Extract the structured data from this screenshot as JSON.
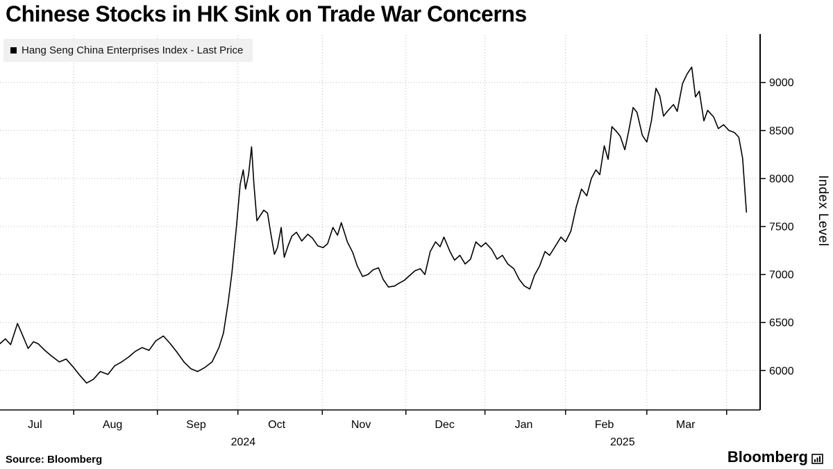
{
  "title": "Chinese Stocks in HK Sink on Trade War Concerns",
  "legend": {
    "series_label": "Hang Seng China Enterprises Index - Last Price"
  },
  "source": "Source: Bloomberg",
  "branding": {
    "logo_text": "Bloomberg"
  },
  "colors": {
    "line": "#000000",
    "grid": "#b4b4b4",
    "legend_bg": "#f0f0f0"
  },
  "chart_data": {
    "type": "line",
    "title": "Chinese Stocks in HK Sink on Trade War Concerns",
    "ylabel": "Index Level",
    "xlabel": "",
    "ylim": [
      5590,
      9490
    ],
    "yticks": [
      6000,
      6500,
      7000,
      7500,
      8000,
      8500,
      9000
    ],
    "grid": "dotted",
    "legend_position": "top-left",
    "months": [
      {
        "label": "Jul",
        "x": 0.046
      },
      {
        "label": "Aug",
        "x": 0.148
      },
      {
        "label": "Sep",
        "x": 0.258
      },
      {
        "label": "Oct",
        "x": 0.364
      },
      {
        "label": "Nov",
        "x": 0.475
      },
      {
        "label": "Dec",
        "x": 0.585
      },
      {
        "label": "Jan",
        "x": 0.689
      },
      {
        "label": "Feb",
        "x": 0.795
      },
      {
        "label": "Mar",
        "x": 0.902
      }
    ],
    "month_boundaries": [
      0.097,
      0.207,
      0.313,
      0.424,
      0.534,
      0.638,
      0.744,
      0.851,
      0.956
    ],
    "years": [
      {
        "label": "2024",
        "x": 0.32
      },
      {
        "label": "2025",
        "x": 0.819
      }
    ],
    "series": [
      {
        "name": "Hang Seng China Enterprises Index - Last Price",
        "color": "#000000",
        "points": [
          [
            0.0,
            6280
          ],
          [
            0.007,
            6330
          ],
          [
            0.014,
            6270
          ],
          [
            0.023,
            6490
          ],
          [
            0.029,
            6380
          ],
          [
            0.037,
            6230
          ],
          [
            0.044,
            6300
          ],
          [
            0.05,
            6280
          ],
          [
            0.059,
            6210
          ],
          [
            0.068,
            6150
          ],
          [
            0.078,
            6090
          ],
          [
            0.087,
            6120
          ],
          [
            0.096,
            6040
          ],
          [
            0.105,
            5950
          ],
          [
            0.114,
            5870
          ],
          [
            0.123,
            5910
          ],
          [
            0.132,
            5990
          ],
          [
            0.142,
            5960
          ],
          [
            0.151,
            6050
          ],
          [
            0.16,
            6090
          ],
          [
            0.169,
            6140
          ],
          [
            0.178,
            6200
          ],
          [
            0.187,
            6240
          ],
          [
            0.196,
            6210
          ],
          [
            0.205,
            6310
          ],
          [
            0.215,
            6360
          ],
          [
            0.224,
            6280
          ],
          [
            0.233,
            6190
          ],
          [
            0.242,
            6090
          ],
          [
            0.251,
            6020
          ],
          [
            0.26,
            5990
          ],
          [
            0.269,
            6030
          ],
          [
            0.279,
            6090
          ],
          [
            0.288,
            6240
          ],
          [
            0.294,
            6390
          ],
          [
            0.3,
            6700
          ],
          [
            0.305,
            7010
          ],
          [
            0.311,
            7490
          ],
          [
            0.316,
            7940
          ],
          [
            0.32,
            8090
          ],
          [
            0.323,
            7890
          ],
          [
            0.327,
            8040
          ],
          [
            0.331,
            8330
          ],
          [
            0.334,
            7950
          ],
          [
            0.338,
            7560
          ],
          [
            0.342,
            7610
          ],
          [
            0.347,
            7670
          ],
          [
            0.352,
            7640
          ],
          [
            0.356,
            7440
          ],
          [
            0.361,
            7210
          ],
          [
            0.365,
            7280
          ],
          [
            0.37,
            7490
          ],
          [
            0.374,
            7180
          ],
          [
            0.379,
            7300
          ],
          [
            0.384,
            7400
          ],
          [
            0.39,
            7440
          ],
          [
            0.397,
            7350
          ],
          [
            0.405,
            7420
          ],
          [
            0.411,
            7380
          ],
          [
            0.418,
            7300
          ],
          [
            0.425,
            7280
          ],
          [
            0.431,
            7320
          ],
          [
            0.438,
            7490
          ],
          [
            0.444,
            7410
          ],
          [
            0.449,
            7540
          ],
          [
            0.457,
            7340
          ],
          [
            0.464,
            7230
          ],
          [
            0.47,
            7090
          ],
          [
            0.477,
            6980
          ],
          [
            0.484,
            7000
          ],
          [
            0.491,
            7050
          ],
          [
            0.498,
            7070
          ],
          [
            0.504,
            6950
          ],
          [
            0.511,
            6870
          ],
          [
            0.519,
            6880
          ],
          [
            0.525,
            6910
          ],
          [
            0.532,
            6940
          ],
          [
            0.539,
            6990
          ],
          [
            0.546,
            7040
          ],
          [
            0.553,
            7060
          ],
          [
            0.559,
            7000
          ],
          [
            0.566,
            7240
          ],
          [
            0.573,
            7340
          ],
          [
            0.579,
            7290
          ],
          [
            0.584,
            7390
          ],
          [
            0.592,
            7240
          ],
          [
            0.598,
            7150
          ],
          [
            0.605,
            7200
          ],
          [
            0.612,
            7110
          ],
          [
            0.619,
            7160
          ],
          [
            0.626,
            7340
          ],
          [
            0.633,
            7290
          ],
          [
            0.639,
            7330
          ],
          [
            0.647,
            7260
          ],
          [
            0.654,
            7160
          ],
          [
            0.661,
            7200
          ],
          [
            0.668,
            7110
          ],
          [
            0.676,
            7060
          ],
          [
            0.683,
            6950
          ],
          [
            0.69,
            6880
          ],
          [
            0.697,
            6850
          ],
          [
            0.703,
            6990
          ],
          [
            0.71,
            7090
          ],
          [
            0.717,
            7240
          ],
          [
            0.723,
            7200
          ],
          [
            0.731,
            7300
          ],
          [
            0.738,
            7390
          ],
          [
            0.744,
            7340
          ],
          [
            0.751,
            7450
          ],
          [
            0.758,
            7700
          ],
          [
            0.765,
            7890
          ],
          [
            0.772,
            7820
          ],
          [
            0.778,
            8000
          ],
          [
            0.784,
            8090
          ],
          [
            0.789,
            8040
          ],
          [
            0.795,
            8340
          ],
          [
            0.8,
            8200
          ],
          [
            0.805,
            8540
          ],
          [
            0.811,
            8490
          ],
          [
            0.816,
            8440
          ],
          [
            0.822,
            8300
          ],
          [
            0.827,
            8490
          ],
          [
            0.833,
            8740
          ],
          [
            0.838,
            8690
          ],
          [
            0.845,
            8450
          ],
          [
            0.851,
            8380
          ],
          [
            0.857,
            8600
          ],
          [
            0.863,
            8940
          ],
          [
            0.868,
            8860
          ],
          [
            0.873,
            8650
          ],
          [
            0.878,
            8700
          ],
          [
            0.886,
            8770
          ],
          [
            0.891,
            8700
          ],
          [
            0.898,
            8990
          ],
          [
            0.904,
            9090
          ],
          [
            0.91,
            9160
          ],
          [
            0.915,
            8850
          ],
          [
            0.92,
            8910
          ],
          [
            0.926,
            8600
          ],
          [
            0.931,
            8710
          ],
          [
            0.939,
            8640
          ],
          [
            0.945,
            8520
          ],
          [
            0.952,
            8560
          ],
          [
            0.959,
            8500
          ],
          [
            0.966,
            8480
          ],
          [
            0.972,
            8430
          ],
          [
            0.977,
            8210
          ],
          [
            0.982,
            7650
          ]
        ]
      }
    ]
  }
}
